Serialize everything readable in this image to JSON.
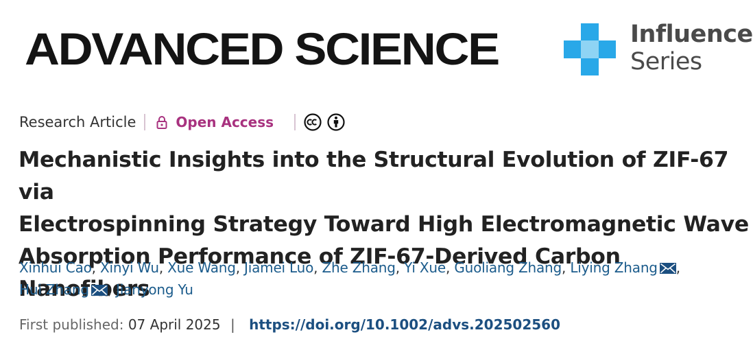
{
  "journal": {
    "title": "ADVANCED SCIENCE",
    "series_line1": "Influence",
    "series_line2": "Series",
    "logo_colors": [
      "#29a8e8",
      "#8fd4f4"
    ]
  },
  "meta": {
    "article_type": "Research Article",
    "access_label": "Open Access",
    "access_color": "#a8327f",
    "license_icons": [
      "creative-commons-icon",
      "attribution-icon"
    ]
  },
  "article": {
    "title_lines": [
      "Mechanistic Insights into the Structural Evolution of ZIF-67 via",
      "Electrospinning Strategy Toward High Electromagnetic Wave",
      "Absorption Performance of ZIF-67-Derived Carbon Nanofibers"
    ]
  },
  "authors": [
    {
      "name": "Xinhui Cao",
      "corresponding": false
    },
    {
      "name": "Xinyi Wu",
      "corresponding": false
    },
    {
      "name": "Xue Wang",
      "corresponding": false
    },
    {
      "name": "Jiamei Luo",
      "corresponding": false
    },
    {
      "name": "Zhe Zhang",
      "corresponding": false
    },
    {
      "name": "Yi Xue",
      "corresponding": false
    },
    {
      "name": "Guoliang Zhang",
      "corresponding": false
    },
    {
      "name": "Liying Zhang",
      "corresponding": true
    },
    {
      "name": "Hui Zhang",
      "corresponding": true
    },
    {
      "name": "Jianyong Yu",
      "corresponding": false
    }
  ],
  "publication": {
    "label": "First published:",
    "date": "07 April 2025",
    "divider": "|",
    "doi": "https://doi.org/10.1002/advs.202502560"
  }
}
